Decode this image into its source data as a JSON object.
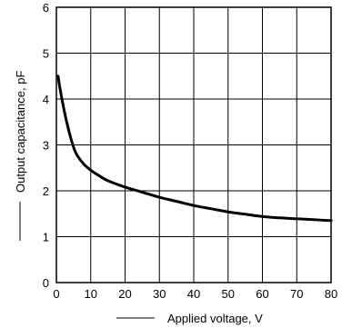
{
  "chart_data": {
    "type": "line",
    "title": "",
    "xlabel": "Applied voltage, V",
    "ylabel": "Output capacitance, pF",
    "xlim": [
      0,
      80
    ],
    "ylim": [
      0,
      6
    ],
    "x_ticks": [
      "0",
      "10",
      "20",
      "30",
      "40",
      "50",
      "60",
      "70",
      "80"
    ],
    "y_ticks": [
      "0",
      "1",
      "2",
      "3",
      "4",
      "5",
      "6"
    ],
    "grid": true,
    "legend": "none",
    "colors": {
      "line": "#000000",
      "grid": "#000000",
      "background": "#ffffff"
    },
    "series": [
      {
        "x": [
          0.5,
          1,
          2,
          3,
          4,
          5,
          6,
          8,
          10,
          12,
          15,
          20,
          25,
          30,
          35,
          40,
          45,
          50,
          55,
          60,
          65,
          70,
          75,
          80
        ],
        "y": [
          4.5,
          4.25,
          3.85,
          3.5,
          3.2,
          2.95,
          2.78,
          2.58,
          2.45,
          2.35,
          2.22,
          2.08,
          1.97,
          1.86,
          1.77,
          1.68,
          1.61,
          1.54,
          1.49,
          1.44,
          1.41,
          1.39,
          1.37,
          1.35
        ]
      }
    ]
  }
}
